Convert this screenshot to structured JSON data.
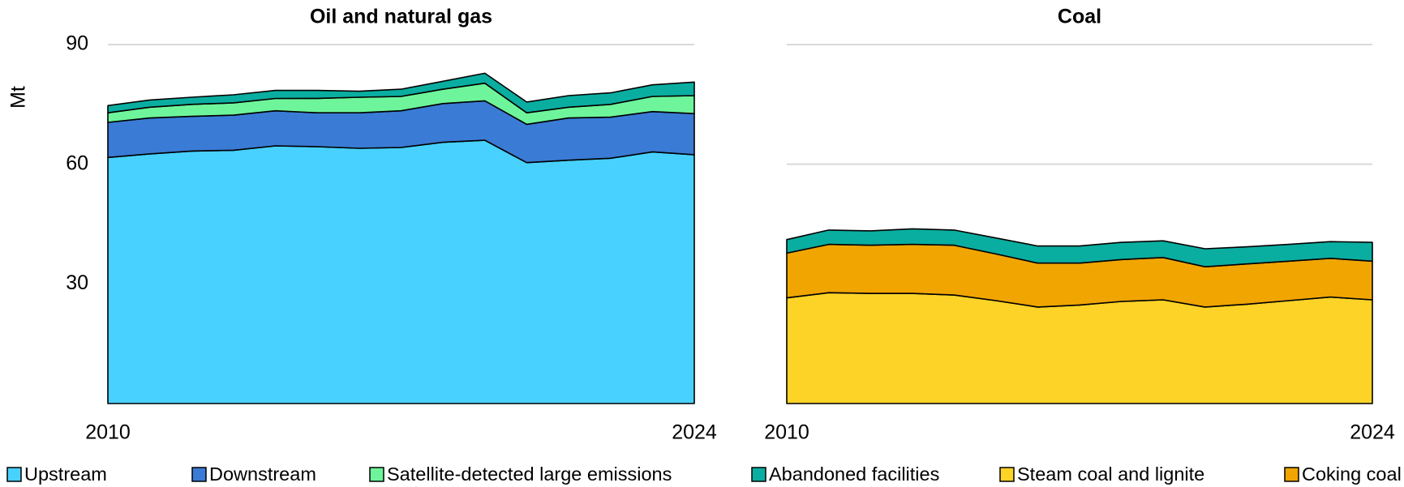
{
  "chart_data": [
    {
      "type": "stacked_area",
      "title": "Oil and natural gas",
      "ylabel": "Mt",
      "x": [
        2010,
        2011,
        2012,
        2013,
        2014,
        2015,
        2016,
        2017,
        2018,
        2019,
        2020,
        2021,
        2022,
        2023,
        2024
      ],
      "xlim": [
        2010,
        2024
      ],
      "xticks": [
        2010,
        2024
      ],
      "ylim": [
        0,
        90
      ],
      "yticks": [
        30,
        60,
        90
      ],
      "grid": true,
      "series": [
        {
          "name": "Upstream",
          "color": "#48d1ff",
          "values": [
            61.7,
            62.6,
            63.3,
            63.5,
            64.6,
            64.4,
            64.0,
            64.2,
            65.5,
            66.0,
            60.4,
            61.0,
            61.5,
            63.1,
            62.4
          ]
        },
        {
          "name": "Downstream",
          "color": "#3a7bd5",
          "values": [
            8.8,
            9.0,
            8.7,
            8.8,
            8.8,
            8.5,
            8.9,
            9.2,
            9.7,
            9.9,
            9.6,
            10.6,
            10.3,
            10.1,
            10.3
          ]
        },
        {
          "name": "Satellite-detected large emissions",
          "color": "#6ef59b",
          "values": [
            2.4,
            2.7,
            3.0,
            3.1,
            3.1,
            3.6,
            3.9,
            3.6,
            3.6,
            4.4,
            2.9,
            2.7,
            3.2,
            3.8,
            4.5
          ]
        },
        {
          "name": "Abandoned facilities",
          "color": "#0aaea0",
          "values": [
            1.8,
            1.8,
            1.8,
            2.0,
            2.0,
            2.0,
            1.5,
            1.8,
            2.0,
            2.5,
            2.7,
            2.9,
            2.9,
            2.9,
            3.4
          ]
        }
      ]
    },
    {
      "type": "stacked_area",
      "title": "Coal",
      "x": [
        2010,
        2011,
        2012,
        2013,
        2014,
        2015,
        2016,
        2017,
        2018,
        2019,
        2020,
        2021,
        2022,
        2023,
        2024
      ],
      "xlim": [
        2010,
        2024
      ],
      "xticks": [
        2010,
        2024
      ],
      "ylim": [
        0,
        90
      ],
      "series": [
        {
          "name": "Steam coal and lignite",
          "color": "#fdd327",
          "values": [
            26.5,
            27.8,
            27.6,
            27.6,
            27.2,
            25.8,
            24.2,
            24.7,
            25.6,
            26.0,
            24.2,
            24.9,
            25.8,
            26.7,
            26.0
          ]
        },
        {
          "name": "Coking coal",
          "color": "#f0a500",
          "values": [
            11.2,
            12.1,
            12.1,
            12.3,
            12.5,
            11.7,
            11.0,
            10.5,
            10.5,
            10.6,
            10.1,
            10.1,
            9.9,
            9.7,
            9.7
          ]
        },
        {
          "color": "#0aaea0",
          "values": [
            3.4,
            3.6,
            3.6,
            3.9,
            3.8,
            4.0,
            4.3,
            4.3,
            4.3,
            4.2,
            4.5,
            4.3,
            4.2,
            4.2,
            4.7
          ]
        }
      ]
    }
  ]
}
